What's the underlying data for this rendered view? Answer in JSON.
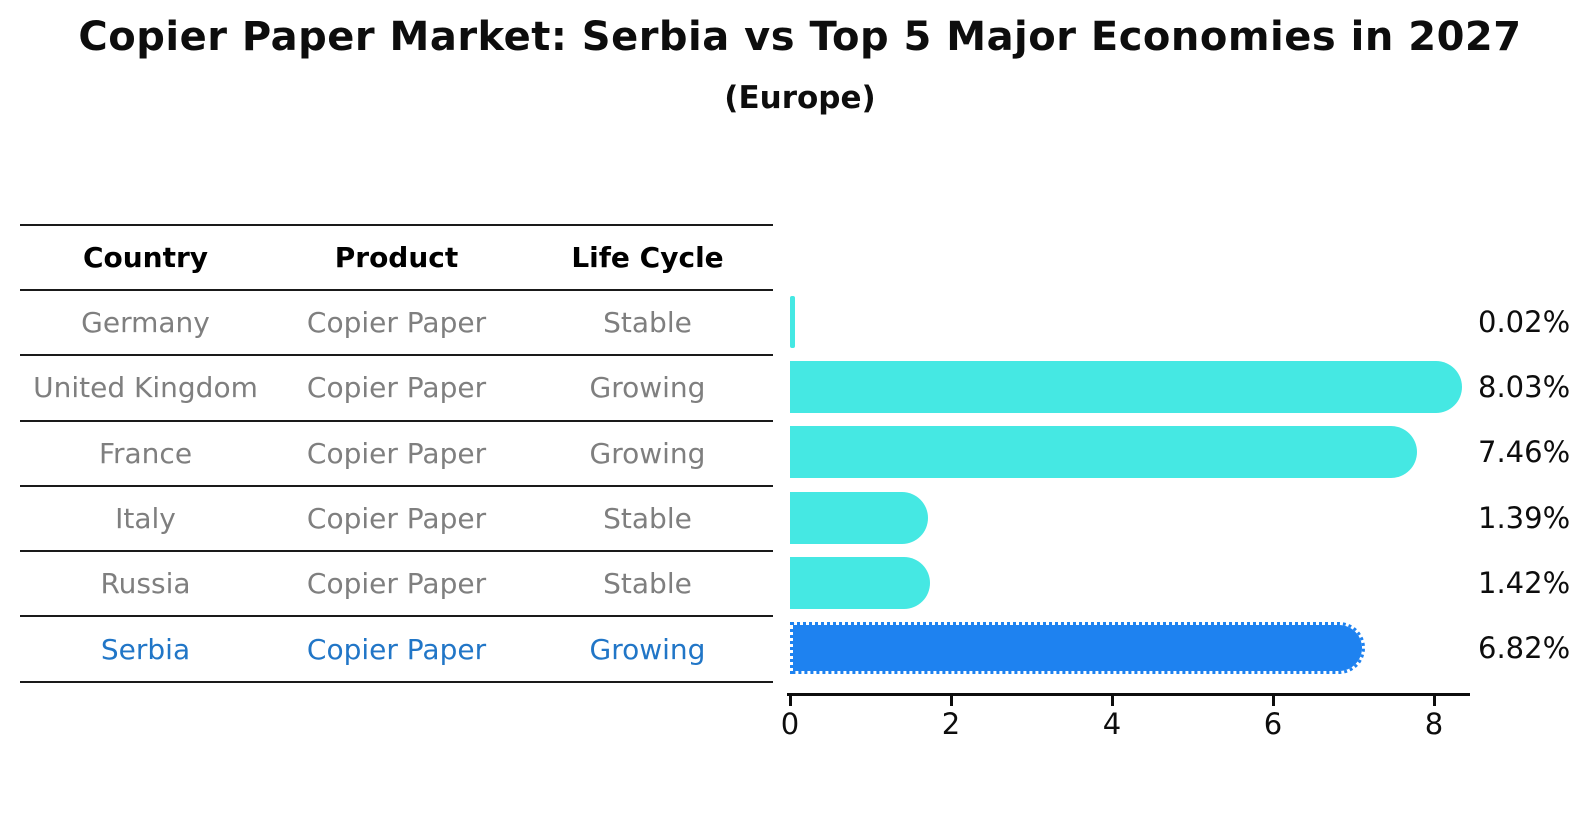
{
  "title": "Copier Paper Market: Serbia vs Top 5 Major Economies in 2027",
  "subtitle": "(Europe)",
  "table": {
    "headers": [
      "Country",
      "Product",
      "Life Cycle"
    ],
    "rows": [
      {
        "country": "Germany",
        "product": "Copier Paper",
        "life_cycle": "Stable",
        "highlighted": false
      },
      {
        "country": "United Kingdom",
        "product": "Copier Paper",
        "life_cycle": "Growing",
        "highlighted": false
      },
      {
        "country": "France",
        "product": "Copier Paper",
        "life_cycle": "Growing",
        "highlighted": false
      },
      {
        "country": "Italy",
        "product": "Copier Paper",
        "life_cycle": "Stable",
        "highlighted": false
      },
      {
        "country": "Russia",
        "product": "Copier Paper",
        "life_cycle": "Stable",
        "highlighted": false
      },
      {
        "country": "Serbia",
        "product": "Copier Paper",
        "life_cycle": "Growing",
        "highlighted": true
      }
    ]
  },
  "chart_data": {
    "type": "bar",
    "orientation": "horizontal",
    "title": "Copier Paper Market: Serbia vs Top 5 Major Economies in 2027 (Europe)",
    "categories": [
      "Germany",
      "United Kingdom",
      "France",
      "Italy",
      "Russia",
      "Serbia"
    ],
    "values": [
      0.02,
      8.03,
      7.46,
      1.39,
      1.42,
      6.82
    ],
    "labels": [
      "0.02%",
      "8.03%",
      "7.46%",
      "1.39%",
      "1.42%",
      "6.82%"
    ],
    "value_unit": "%",
    "highlight_index": 5,
    "x_ticks": [
      0,
      2,
      4,
      6,
      8
    ],
    "xlim": [
      0,
      8.45
    ],
    "xlabel": "",
    "ylabel": "",
    "grid": false,
    "legend": false,
    "colors": {
      "bar": "#45E8E3",
      "highlight_bar": "#1E82F0",
      "highlight_text": "#2176C7",
      "row_text": "#7f7f7f",
      "header_text": "#000000",
      "axis": "#0d0d0d"
    }
  }
}
